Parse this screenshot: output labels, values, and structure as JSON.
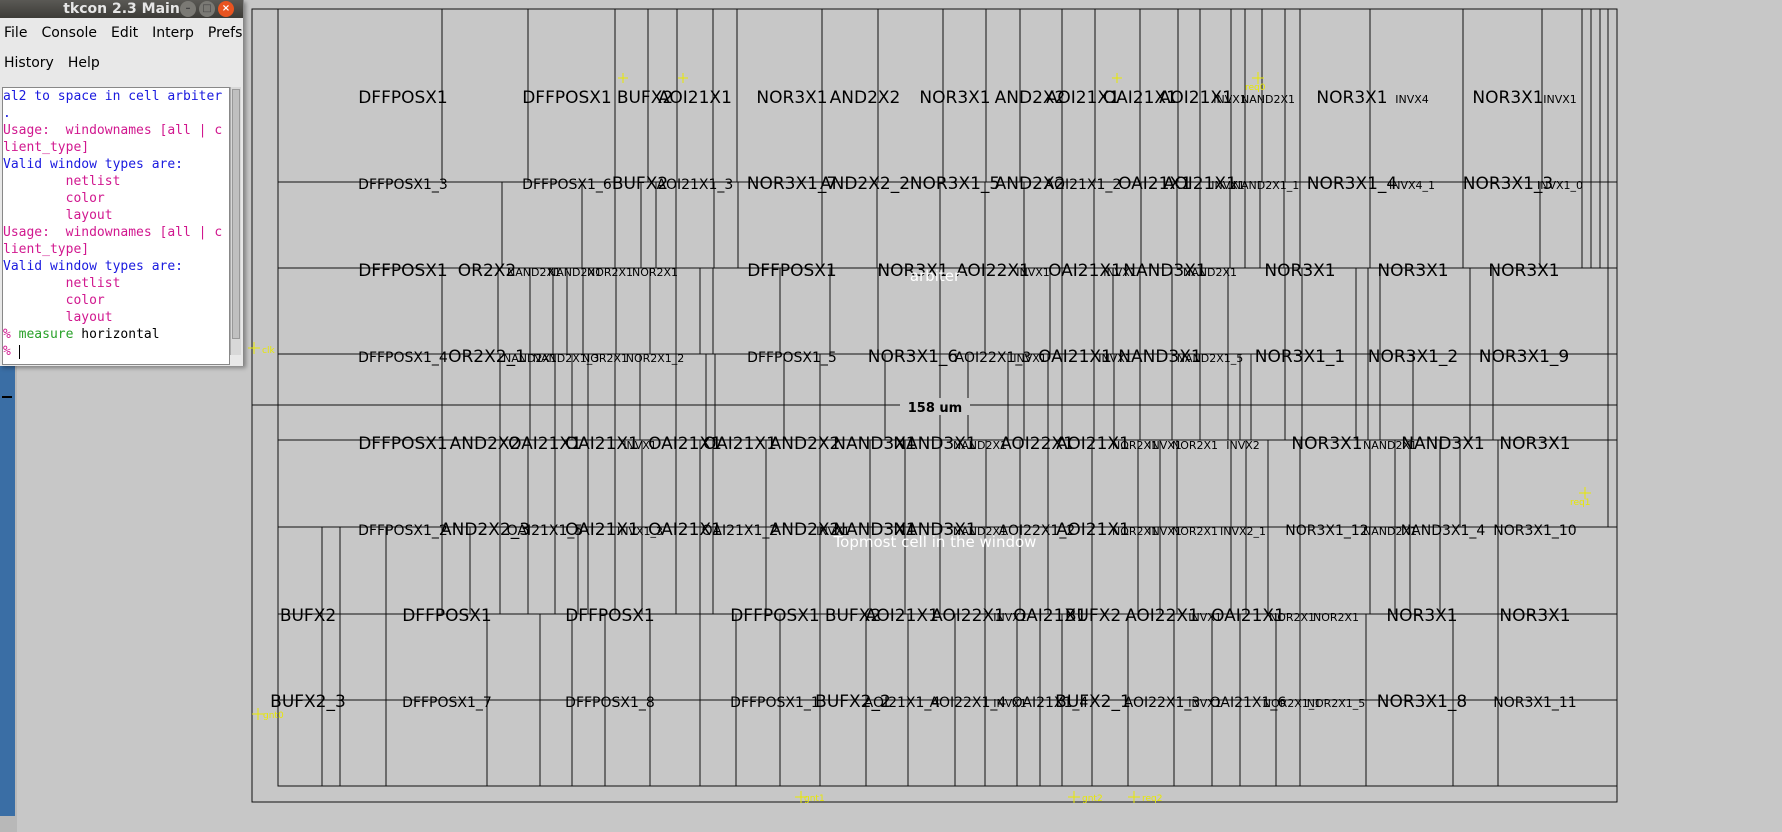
{
  "tkcon": {
    "title": "tkcon 2.3 Main",
    "menu_row1": [
      "File",
      "Console",
      "Edit",
      "Interp",
      "Prefs"
    ],
    "menu_row2": [
      "History",
      "Help"
    ],
    "console_lines": [
      {
        "text": "al2 to space in cell arbiter",
        "color": "blue"
      },
      {
        "text": ".",
        "color": "blue"
      },
      {
        "text": "Usage:  windownames [all | c",
        "color": "mag"
      },
      {
        "text": "lient_type]",
        "color": "mag"
      },
      {
        "text": "Valid window types are:",
        "color": "blue"
      },
      {
        "text": "        netlist",
        "color": "mag"
      },
      {
        "text": "        color",
        "color": "mag"
      },
      {
        "text": "        layout",
        "color": "mag"
      },
      {
        "text": "Usage:  windownames [all | c",
        "color": "mag"
      },
      {
        "text": "lient_type]",
        "color": "mag"
      },
      {
        "text": "Valid window types are:",
        "color": "blue"
      },
      {
        "text": "        netlist",
        "color": "mag"
      },
      {
        "text": "        color",
        "color": "mag"
      },
      {
        "text": "        layout",
        "color": "mag"
      }
    ],
    "prompt_cmd": "measure",
    "prompt_arg": "horizontal",
    "prompt_symbol": "%"
  },
  "layout": {
    "cell_name": "arbiter",
    "measurement": "158 um",
    "topmost_text": "Topmost cell in the window",
    "pins": {
      "clk": "clk",
      "gnt0": "gnt0",
      "gnt1": "gnt1",
      "gnt2": "gnt2",
      "req2": "req2",
      "req1": "req1",
      "req0": "req0"
    },
    "rows": [
      {
        "labels": [
          [
            "DFFPOSX1",
            403
          ],
          [
            "DFFPOSX1",
            567
          ],
          [
            "BUFX2",
            645
          ],
          [
            "AOI21X1",
            695
          ],
          [
            "NOR3X1",
            792
          ],
          [
            "AND2X2",
            865
          ],
          [
            "NOR3X1",
            955
          ],
          [
            "AND2X2",
            1030
          ],
          [
            "AOI21X1",
            1083
          ],
          [
            "OAI21X1",
            1140
          ],
          [
            "AOI21X1",
            1196
          ],
          [
            "INVX1",
            1230
          ],
          [
            "NAND2X1",
            1268
          ],
          [
            "NOR3X1",
            1352
          ],
          [
            "INVX4",
            1412
          ],
          [
            "NOR3X1",
            1508
          ],
          [
            "INVX1",
            1560
          ]
        ]
      },
      {
        "labels": [
          [
            "DFFPOSX1_3",
            403
          ],
          [
            "DFFPOSX1_6",
            567
          ],
          [
            "BUFX2",
            640
          ],
          [
            "AOI21X1_3",
            695
          ],
          [
            "NOR3X1_7",
            792
          ],
          [
            "AND2X2_2",
            865
          ],
          [
            "NOR3X1_5",
            955
          ],
          [
            "AND2X2",
            1030
          ],
          [
            "AOI21X1_2",
            1083
          ],
          [
            "OAI21X1",
            1155
          ],
          [
            "AOI21X1",
            1200
          ],
          [
            "INVX1",
            1228
          ],
          [
            "NAND2X1_1",
            1266
          ],
          [
            "NOR3X1_4",
            1352
          ],
          [
            "INVX4_1",
            1412
          ],
          [
            "NOR3X1_3",
            1508
          ],
          [
            "INVX1_0",
            1560
          ]
        ]
      },
      {
        "labels": [
          [
            "DFFPOSX1",
            403
          ],
          [
            "OR2X2",
            487
          ],
          [
            "NAND2X1",
            534
          ],
          [
            "NAND2X1",
            575
          ],
          [
            "NOR2X1",
            610
          ],
          [
            "NOR2X1",
            655
          ],
          [
            "DFFPOSX1",
            792
          ],
          [
            "NOR3X1",
            913
          ],
          [
            "AOI22X1",
            993
          ],
          [
            "INVX1",
            1033
          ],
          [
            "OAI21X1",
            1085
          ],
          [
            "INVX1",
            1120
          ],
          [
            "NAND3X1",
            1165
          ],
          [
            "NAND2X1",
            1210
          ],
          [
            "NOR3X1",
            1300
          ],
          [
            "NOR3X1",
            1413
          ],
          [
            "NOR3X1",
            1524
          ]
        ]
      },
      {
        "labels": [
          [
            "DFFPOSX1_4",
            403
          ],
          [
            "OR2X2_1",
            487
          ],
          [
            "NAND2X1",
            530
          ],
          [
            "NAND2X1_3",
            566
          ],
          [
            "NOR2X1",
            605
          ],
          [
            "NOR2X1_2",
            655
          ],
          [
            "DFFPOSX1_5",
            792
          ],
          [
            "NOR3X1_6",
            913
          ],
          [
            "AOI22X1_3",
            993
          ],
          [
            "INVX1",
            1030
          ],
          [
            "OAI21X1",
            1075
          ],
          [
            "INVX1",
            1115
          ],
          [
            "NAND3X1",
            1160
          ],
          [
            "NAND2X1_5",
            1210
          ],
          [
            "NOR3X1_1",
            1300
          ],
          [
            "NOR3X1_2",
            1413
          ],
          [
            "NOR3X1_9",
            1524
          ]
        ]
      },
      {
        "labels": [
          [
            "DFFPOSX1",
            403
          ],
          [
            "AND2X2",
            485
          ],
          [
            "OAI21X1",
            545
          ],
          [
            "OAI21X1",
            602
          ],
          [
            "INVX1",
            640
          ],
          [
            "OAI21X1",
            685
          ],
          [
            "OAI21X1",
            740
          ],
          [
            "AND2X2",
            805
          ],
          [
            "NAND3X1",
            875
          ],
          [
            "NAND3X1",
            935
          ],
          [
            "NAND2X1",
            980
          ],
          [
            "AOI22X1",
            1037
          ],
          [
            "AOI21X1",
            1093
          ],
          [
            "NOR2X1",
            1135
          ],
          [
            "INVX1",
            1165
          ],
          [
            "NOR2X1",
            1195
          ],
          [
            "INVX2",
            1243
          ],
          [
            "NOR3X1",
            1327
          ],
          [
            "NAND2X1",
            1390
          ],
          [
            "NAND3X1",
            1443
          ],
          [
            "NOR3X1",
            1535
          ]
        ]
      },
      {
        "labels": [
          [
            "DFFPOSX1_2",
            403
          ],
          [
            "AND2X2_3",
            485
          ],
          [
            "OAI21X1_5",
            545
          ],
          [
            "OAI21X1",
            602
          ],
          [
            "INVX1_3",
            640
          ],
          [
            "OAI21X1",
            685
          ],
          [
            "OAI21X1_2",
            740
          ],
          [
            "AND2X2",
            805
          ],
          [
            "INVX1",
            833
          ],
          [
            "NAND3X1",
            875
          ],
          [
            "NAND3X1",
            935
          ],
          [
            "NAND2X1",
            980
          ],
          [
            "AOI22X1_2",
            1037
          ],
          [
            "AOI21X1",
            1093
          ],
          [
            "NOR2X1",
            1135
          ],
          [
            "INVX1",
            1165
          ],
          [
            "NOR2X1",
            1195
          ],
          [
            "INVX2_1",
            1243
          ],
          [
            "NOR3X1_12",
            1327
          ],
          [
            "NAND2X1",
            1390
          ],
          [
            "NAND3X1_4",
            1443
          ],
          [
            "NOR3X1_10",
            1535
          ]
        ]
      },
      {
        "labels": [
          [
            "BUFX2",
            308
          ],
          [
            "DFFPOSX1",
            447
          ],
          [
            "DFFPOSX1",
            610
          ],
          [
            "DFFPOSX1",
            775
          ],
          [
            "BUFX2",
            853
          ],
          [
            "AOI21X1",
            902
          ],
          [
            "AOI22X1",
            968
          ],
          [
            "INVX1",
            1010
          ],
          [
            "OAI21X1",
            1050
          ],
          [
            "BUFX2",
            1093
          ],
          [
            "AOI22X1",
            1162
          ],
          [
            "INVX1",
            1205
          ],
          [
            "OAI21X1",
            1248
          ],
          [
            "NOR2X1",
            1292
          ],
          [
            "NOR2X1",
            1336
          ],
          [
            "NOR3X1",
            1422
          ],
          [
            "NOR3X1",
            1535
          ]
        ]
      },
      {
        "labels": [
          [
            "BUFX2_3",
            308
          ],
          [
            "DFFPOSX1_7",
            447
          ],
          [
            "DFFPOSX1_8",
            610
          ],
          [
            "DFFPOSX1_1",
            775
          ],
          [
            "BUFX2_2",
            853
          ],
          [
            "AOI21X1_4",
            902
          ],
          [
            "AOI22X1_4",
            968
          ],
          [
            "INVX1",
            1010
          ],
          [
            "OAI21X1_4",
            1050
          ],
          [
            "BUFX2_1",
            1093
          ],
          [
            "AOI22X1_3",
            1162
          ],
          [
            "INVX1",
            1205
          ],
          [
            "OAI21X1_6",
            1248
          ],
          [
            "NOR2X1_1",
            1292
          ],
          [
            "NOR2X1_5",
            1336
          ],
          [
            "NOR3X1_8",
            1422
          ],
          [
            "NOR3X1_11",
            1535
          ]
        ]
      }
    ],
    "colors": {
      "background": "#c7c7c7",
      "line": "#111111",
      "pin": "#e8e800",
      "label": "#000000",
      "highlight_text": "#ffffff"
    }
  }
}
